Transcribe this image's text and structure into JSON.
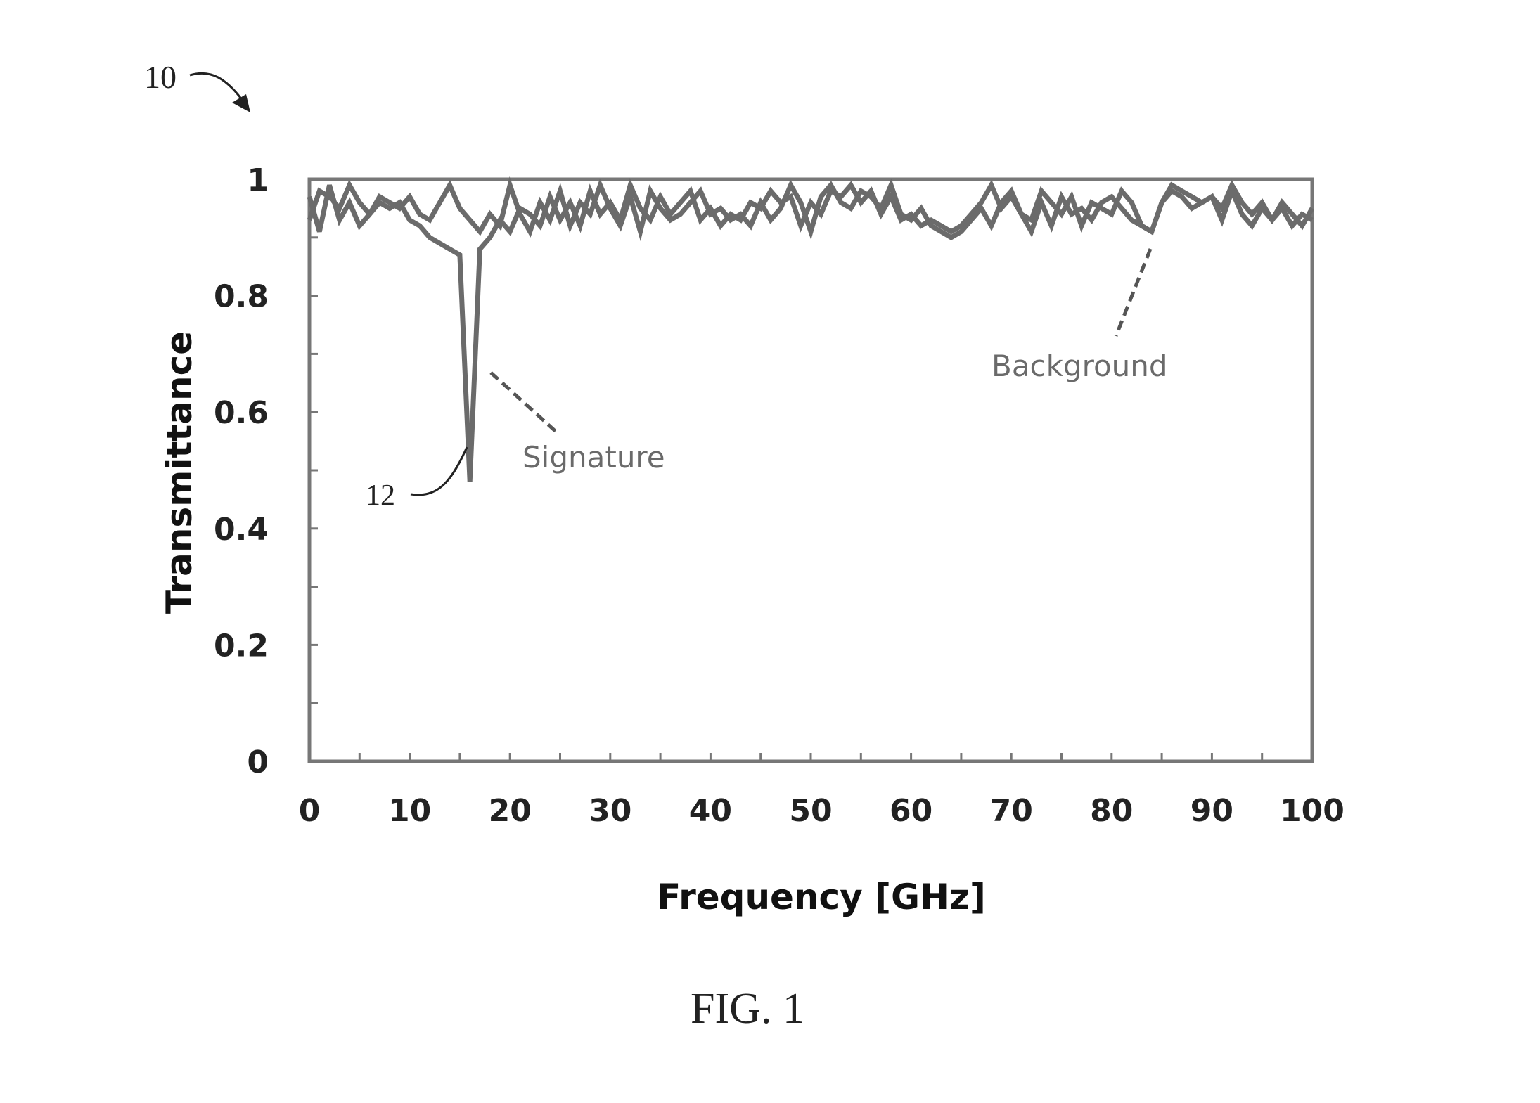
{
  "figure": {
    "ref_number": "10",
    "peak_ref_number": "12",
    "caption": "FIG. 1"
  },
  "colors": {
    "series": "#6b6b6b",
    "frame": "#777777",
    "text": "#222222"
  },
  "chart_data": {
    "type": "line",
    "title": "",
    "xlabel": "Frequency [GHz]",
    "ylabel": "Transmittance",
    "xlim": [
      0,
      100
    ],
    "ylim": [
      0,
      1
    ],
    "xticks": [
      "0",
      "10",
      "20",
      "30",
      "40",
      "50",
      "60",
      "70",
      "80",
      "90",
      "100"
    ],
    "yticks": [
      "0",
      "0.2",
      "0.4",
      "0.6",
      "0.8",
      "1"
    ],
    "grid": false,
    "legend": "none",
    "annotations": [
      "Signature",
      "Background"
    ],
    "series": [
      {
        "name": "Signature",
        "x": [
          0,
          1,
          2,
          3,
          4,
          5,
          6,
          7,
          8,
          9,
          10,
          11,
          12,
          13,
          14,
          15,
          16,
          17,
          18,
          19,
          20,
          21,
          22,
          23,
          24,
          25,
          26,
          27,
          28,
          29,
          30,
          31,
          32,
          33,
          34,
          35,
          36,
          37,
          38,
          39,
          40,
          41,
          42,
          43,
          44,
          45,
          46,
          47,
          48,
          49,
          50,
          51,
          52,
          53,
          54,
          55,
          56,
          57,
          58,
          59,
          60,
          61,
          62,
          63,
          64,
          65,
          66,
          67,
          68,
          69,
          70,
          71,
          72,
          73,
          74,
          75,
          76,
          77,
          78,
          79,
          80,
          81,
          82,
          83,
          84,
          85,
          86,
          87,
          88,
          89,
          90,
          91,
          92,
          93,
          94,
          95,
          96,
          97,
          98,
          99,
          100
        ],
        "y": [
          0.93,
          0.98,
          0.97,
          0.95,
          0.99,
          0.96,
          0.94,
          0.96,
          0.95,
          0.96,
          0.93,
          0.92,
          0.9,
          0.89,
          0.88,
          0.87,
          0.48,
          0.88,
          0.9,
          0.93,
          0.91,
          0.95,
          0.94,
          0.92,
          0.97,
          0.93,
          0.96,
          0.92,
          0.98,
          0.94,
          0.96,
          0.93,
          0.99,
          0.95,
          0.93,
          0.97,
          0.94,
          0.96,
          0.98,
          0.93,
          0.95,
          0.92,
          0.94,
          0.93,
          0.96,
          0.95,
          0.98,
          0.96,
          0.97,
          0.92,
          0.96,
          0.94,
          0.98,
          0.97,
          0.99,
          0.96,
          0.98,
          0.94,
          0.97,
          0.93,
          0.94,
          0.92,
          0.93,
          0.92,
          0.91,
          0.92,
          0.94,
          0.96,
          0.99,
          0.95,
          0.97,
          0.94,
          0.93,
          0.98,
          0.96,
          0.94,
          0.97,
          0.92,
          0.96,
          0.95,
          0.94,
          0.98,
          0.96,
          0.92,
          0.91,
          0.96,
          0.99,
          0.98,
          0.97,
          0.96,
          0.97,
          0.95,
          0.99,
          0.96,
          0.94,
          0.96,
          0.93,
          0.95,
          0.92,
          0.94,
          0.93
        ]
      },
      {
        "name": "Background",
        "x": [
          0,
          1,
          2,
          3,
          4,
          5,
          6,
          7,
          8,
          9,
          10,
          11,
          12,
          13,
          14,
          15,
          16,
          17,
          18,
          19,
          20,
          21,
          22,
          23,
          24,
          25,
          26,
          27,
          28,
          29,
          30,
          31,
          32,
          33,
          34,
          35,
          36,
          37,
          38,
          39,
          40,
          41,
          42,
          43,
          44,
          45,
          46,
          47,
          48,
          49,
          50,
          51,
          52,
          53,
          54,
          55,
          56,
          57,
          58,
          59,
          60,
          61,
          62,
          63,
          64,
          65,
          66,
          67,
          68,
          69,
          70,
          71,
          72,
          73,
          74,
          75,
          76,
          77,
          78,
          79,
          80,
          81,
          82,
          83,
          84,
          85,
          86,
          87,
          88,
          89,
          90,
          91,
          92,
          93,
          94,
          95,
          96,
          97,
          98,
          99,
          100
        ],
        "y": [
          0.97,
          0.91,
          0.99,
          0.93,
          0.96,
          0.92,
          0.94,
          0.97,
          0.96,
          0.95,
          0.97,
          0.94,
          0.93,
          0.96,
          0.99,
          0.95,
          0.93,
          0.91,
          0.94,
          0.92,
          0.99,
          0.94,
          0.91,
          0.96,
          0.93,
          0.98,
          0.92,
          0.96,
          0.94,
          0.99,
          0.95,
          0.92,
          0.97,
          0.91,
          0.98,
          0.95,
          0.93,
          0.94,
          0.96,
          0.98,
          0.94,
          0.95,
          0.93,
          0.94,
          0.92,
          0.96,
          0.93,
          0.95,
          0.99,
          0.96,
          0.91,
          0.97,
          0.99,
          0.96,
          0.95,
          0.98,
          0.97,
          0.95,
          0.99,
          0.94,
          0.93,
          0.95,
          0.92,
          0.91,
          0.9,
          0.91,
          0.93,
          0.95,
          0.92,
          0.96,
          0.98,
          0.94,
          0.91,
          0.96,
          0.92,
          0.97,
          0.94,
          0.95,
          0.93,
          0.96,
          0.97,
          0.95,
          0.93,
          0.92,
          0.91,
          0.96,
          0.98,
          0.97,
          0.95,
          0.96,
          0.97,
          0.93,
          0.98,
          0.94,
          0.92,
          0.95,
          0.93,
          0.96,
          0.94,
          0.92,
          0.95
        ]
      }
    ]
  }
}
